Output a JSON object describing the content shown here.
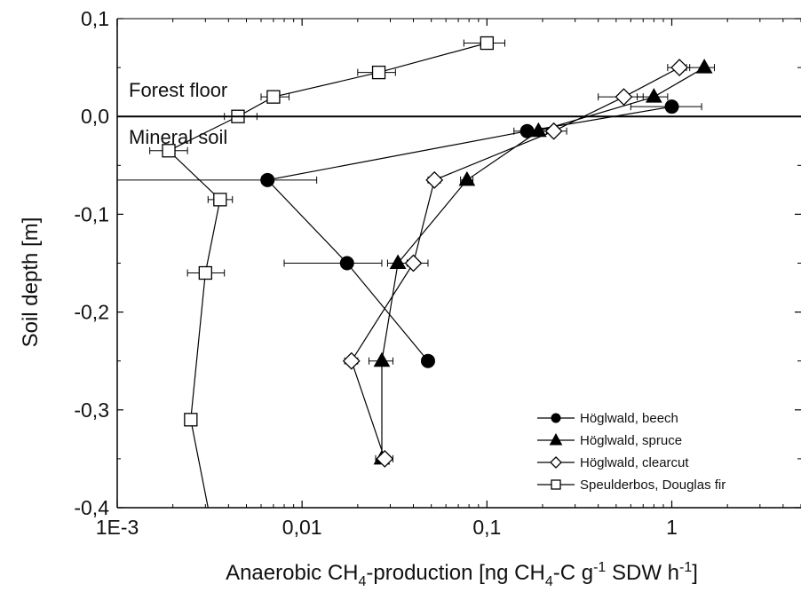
{
  "chart_data": {
    "type": "scatter",
    "xscale": "log",
    "xlim": [
      0.001,
      5
    ],
    "ylim": [
      -0.4,
      0.1
    ],
    "xlabel_main": "Anaerobic CH",
    "xlabel_sub1": "4",
    "xlabel_mid": "-production [ng CH",
    "xlabel_sub2": "4",
    "xlabel_mid2": "-C g",
    "xlabel_sup1": "-1",
    "xlabel_mid3": " SDW h",
    "xlabel_sup2": "-1",
    "xlabel_end": "]",
    "ylabel": "Soil depth [m]",
    "x_ticks": [
      {
        "value": 0.001,
        "label": "1E-3"
      },
      {
        "value": 0.01,
        "label": "0,01"
      },
      {
        "value": 0.1,
        "label": "0,1"
      },
      {
        "value": 1,
        "label": "1"
      }
    ],
    "y_ticks": [
      {
        "value": 0.1,
        "label": "0,1"
      },
      {
        "value": 0.0,
        "label": "0,0"
      },
      {
        "value": -0.1,
        "label": "-0,1"
      },
      {
        "value": -0.2,
        "label": "-0,2"
      },
      {
        "value": -0.3,
        "label": "-0,3"
      },
      {
        "value": -0.4,
        "label": "-0,4"
      }
    ],
    "annotations": [
      {
        "text": "Forest floor"
      },
      {
        "text": "Mineral soil"
      }
    ],
    "reference_line_y": 0.0,
    "legend_position": "bottom-right",
    "series": [
      {
        "name": "Höglwald, beech",
        "marker": "circle-filled",
        "points": [
          {
            "y": 0.01,
            "x": 1.0,
            "xerr": [
              0.6,
              1.45
            ]
          },
          {
            "y": -0.015,
            "x": 0.165,
            "xerr": [
              0.14,
              0.19
            ]
          },
          {
            "y": -0.065,
            "x": 0.0065,
            "xerr": [
              0.001,
              0.012
            ]
          },
          {
            "y": -0.15,
            "x": 0.0175,
            "xerr": [
              0.008,
              0.027
            ]
          },
          {
            "y": -0.25,
            "x": 0.048,
            "xerr": [
              0.048,
              0.048
            ]
          }
        ]
      },
      {
        "name": "Höglwald, spruce",
        "marker": "triangle-filled",
        "points": [
          {
            "y": 0.05,
            "x": 1.5,
            "xerr": [
              1.2,
              1.7
            ]
          },
          {
            "y": 0.02,
            "x": 0.8,
            "xerr": [
              0.65,
              0.95
            ]
          },
          {
            "y": -0.015,
            "x": 0.19,
            "xerr": [
              0.17,
              0.21
            ]
          },
          {
            "y": -0.065,
            "x": 0.078,
            "xerr": [
              0.072,
              0.084
            ]
          },
          {
            "y": -0.15,
            "x": 0.033,
            "xerr": [
              0.029,
              0.037
            ]
          },
          {
            "y": -0.25,
            "x": 0.027,
            "xerr": [
              0.023,
              0.031
            ]
          },
          {
            "y": -0.35,
            "x": 0.027,
            "xerr": [
              0.025,
              0.029
            ]
          }
        ]
      },
      {
        "name": "Höglwald, clearcut",
        "marker": "diamond-open",
        "points": [
          {
            "y": 0.05,
            "x": 1.1,
            "xerr": [
              0.95,
              1.25
            ]
          },
          {
            "y": 0.02,
            "x": 0.55,
            "xerr": [
              0.4,
              0.7
            ]
          },
          {
            "y": -0.015,
            "x": 0.23,
            "xerr": [
              0.2,
              0.27
            ]
          },
          {
            "y": -0.065,
            "x": 0.052,
            "xerr": [
              0.048,
              0.056
            ]
          },
          {
            "y": -0.15,
            "x": 0.04,
            "xerr": [
              0.033,
              0.048
            ]
          },
          {
            "y": -0.25,
            "x": 0.0185,
            "xerr": [
              0.017,
              0.02
            ]
          },
          {
            "y": -0.35,
            "x": 0.028,
            "xerr": [
              0.025,
              0.031
            ]
          }
        ]
      },
      {
        "name": "Speulderbos, Douglas fir",
        "marker": "square-open",
        "points": [
          {
            "y": 0.075,
            "x": 0.1,
            "xerr": [
              0.075,
              0.125
            ]
          },
          {
            "y": 0.045,
            "x": 0.026,
            "xerr": [
              0.02,
              0.032
            ]
          },
          {
            "y": 0.02,
            "x": 0.007,
            "xerr": [
              0.006,
              0.0085
            ]
          },
          {
            "y": 0.0,
            "x": 0.0045,
            "xerr": [
              0.0038,
              0.0057
            ]
          },
          {
            "y": -0.035,
            "x": 0.0019,
            "xerr": [
              0.0015,
              0.0024
            ]
          },
          {
            "y": -0.085,
            "x": 0.0036,
            "xerr": [
              0.0031,
              0.0042
            ]
          },
          {
            "y": -0.16,
            "x": 0.003,
            "xerr": [
              0.0024,
              0.0038
            ]
          },
          {
            "y": -0.31,
            "x": 0.0025,
            "xerr": [
              0.0024,
              0.0026
            ]
          },
          {
            "y": -0.4,
            "x": 0.0031,
            "xerr": null
          }
        ]
      }
    ],
    "colors": {
      "axis": "#000000",
      "marker_fill": "#000000",
      "marker_open_fill": "#ffffff"
    }
  }
}
